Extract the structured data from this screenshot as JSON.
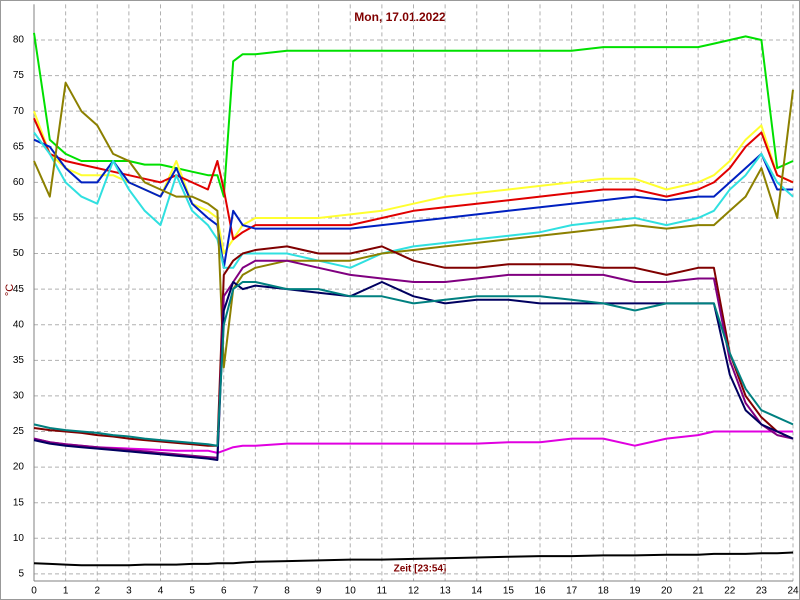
{
  "chart_data": {
    "type": "line",
    "title": "Mon, 17.01.2022",
    "y_label": "°C",
    "annotation": "Zeit [23:54]",
    "x": [
      0,
      0.5,
      1,
      1.5,
      2,
      2.5,
      3,
      3.5,
      4,
      4.5,
      5,
      5.5,
      5.8,
      6,
      6.3,
      6.6,
      7,
      8,
      9,
      10,
      11,
      12,
      13,
      14,
      15,
      16,
      17,
      18,
      19,
      20,
      21,
      21.5,
      22,
      22.5,
      23,
      23.5,
      24
    ],
    "xlim": [
      0,
      24
    ],
    "xticks": [
      0,
      1,
      2,
      3,
      4,
      5,
      6,
      7,
      8,
      9,
      10,
      11,
      12,
      13,
      14,
      15,
      16,
      17,
      18,
      19,
      20,
      21,
      22,
      23,
      24
    ],
    "ylim": [
      4,
      85
    ],
    "yticks": [
      5,
      10,
      15,
      20,
      25,
      30,
      35,
      40,
      45,
      50,
      55,
      60,
      65,
      70,
      75,
      80
    ],
    "grid": true,
    "series": [
      {
        "color": "#00e000",
        "values": [
          81,
          66,
          64,
          63,
          63,
          63,
          63,
          62.5,
          62.5,
          62,
          61.5,
          61,
          61,
          58,
          77,
          78,
          78,
          78.5,
          78.5,
          78.5,
          78.5,
          78.5,
          78.5,
          78.5,
          78.5,
          78.5,
          78.5,
          79,
          79,
          79,
          79,
          79.5,
          80,
          80.5,
          80,
          62,
          63
        ]
      },
      {
        "color": "#ffff30",
        "values": [
          70,
          64,
          62,
          61,
          61,
          61,
          60,
          59,
          58,
          63,
          57,
          56,
          55,
          50,
          52,
          54,
          55,
          55,
          55,
          55.5,
          56,
          57,
          58,
          58.5,
          59,
          59.5,
          60,
          60.5,
          60.5,
          59,
          60,
          61,
          63,
          66,
          68,
          61,
          60
        ]
      },
      {
        "color": "#e00000",
        "values": [
          69,
          64,
          63,
          62.5,
          62,
          61.5,
          61,
          60.5,
          60,
          61,
          60,
          59,
          63,
          59,
          52,
          53,
          54,
          54,
          54,
          54,
          55,
          56,
          56.5,
          57,
          57.5,
          58,
          58.5,
          59,
          59,
          58,
          59,
          60,
          62,
          65,
          67,
          61,
          60
        ]
      },
      {
        "color": "#0020c0",
        "values": [
          66,
          65,
          62,
          60,
          60,
          63,
          60,
          59,
          58,
          62,
          57,
          55,
          54,
          48,
          56,
          54,
          53.5,
          53.5,
          53.5,
          53.5,
          54,
          54.5,
          55,
          55.5,
          56,
          56.5,
          57,
          57.5,
          58,
          57.5,
          58,
          58,
          60,
          62,
          64,
          59,
          59
        ]
      },
      {
        "color": "#30e0e0",
        "values": [
          67,
          64,
          60,
          58,
          57,
          63,
          59,
          56,
          54,
          61,
          56,
          54,
          52,
          48,
          48,
          50,
          50,
          50,
          49,
          48,
          50,
          51,
          51.5,
          52,
          52.5,
          53,
          54,
          54.5,
          55,
          54,
          55,
          56,
          59,
          61,
          64,
          60,
          58
        ]
      },
      {
        "color": "#8c8000",
        "values": [
          63,
          58,
          74,
          70,
          68,
          64,
          63,
          60,
          59,
          58,
          58,
          57,
          56,
          34,
          45,
          47,
          48,
          49,
          49,
          49,
          50,
          50.5,
          51,
          51.5,
          52,
          52.5,
          53,
          53.5,
          54,
          53.5,
          54,
          54,
          56,
          58,
          62,
          55,
          73
        ]
      },
      {
        "color": "#e000e0",
        "values": [
          24,
          23.5,
          23.2,
          23,
          22.8,
          22.7,
          22.6,
          22.5,
          22.4,
          22.3,
          22.3,
          22.3,
          22,
          22.3,
          22.8,
          23,
          23,
          23.3,
          23.3,
          23.3,
          23.3,
          23.3,
          23.3,
          23.3,
          23.5,
          23.5,
          24,
          24,
          23,
          24,
          24.5,
          25,
          25,
          25,
          25,
          25,
          25
        ]
      },
      {
        "color": "#800000",
        "values": [
          25.5,
          25.2,
          25,
          24.8,
          24.5,
          24.3,
          24,
          23.8,
          23.6,
          23.4,
          23.2,
          23,
          23,
          47,
          49,
          50,
          50.5,
          51,
          50,
          50,
          51,
          49,
          48,
          48,
          48.5,
          48.5,
          48.5,
          48,
          48,
          47,
          48,
          48,
          36,
          30,
          27,
          25,
          24
        ]
      },
      {
        "color": "#800080",
        "values": [
          24,
          23.5,
          23.2,
          23,
          22.8,
          22.6,
          22.4,
          22.2,
          22,
          21.8,
          21.6,
          21.4,
          21.3,
          44,
          46,
          48,
          49,
          49,
          48,
          47,
          46.5,
          46,
          46,
          46.5,
          47,
          47,
          47,
          47,
          46,
          46,
          46.5,
          46.5,
          35,
          29,
          26,
          24.5,
          24
        ]
      },
      {
        "color": "#000060",
        "values": [
          23.8,
          23.3,
          23,
          22.8,
          22.6,
          22.4,
          22.2,
          22,
          21.8,
          21.6,
          21.4,
          21.2,
          21,
          42,
          46,
          45,
          45.5,
          45,
          44.5,
          44,
          46,
          44,
          43,
          43.5,
          43.5,
          43,
          43,
          43,
          43,
          43,
          43,
          43,
          33,
          28,
          26,
          25,
          24
        ]
      },
      {
        "color": "#008080",
        "values": [
          26,
          25.5,
          25.2,
          25,
          24.8,
          24.5,
          24.3,
          24,
          23.8,
          23.6,
          23.4,
          23.2,
          23,
          40,
          45,
          46,
          46,
          45,
          45,
          44,
          44,
          43,
          43.5,
          44,
          44,
          44,
          43.5,
          43,
          42,
          43,
          43,
          43,
          36,
          31,
          28,
          27,
          26
        ]
      },
      {
        "color": "#000000",
        "values": [
          6.5,
          6.4,
          6.3,
          6.2,
          6.2,
          6.2,
          6.2,
          6.3,
          6.3,
          6.3,
          6.4,
          6.4,
          6.5,
          6.5,
          6.5,
          6.6,
          6.7,
          6.8,
          6.9,
          7,
          7,
          7.1,
          7.2,
          7.3,
          7.4,
          7.5,
          7.5,
          7.6,
          7.6,
          7.7,
          7.7,
          7.8,
          7.8,
          7.8,
          7.9,
          7.9,
          8
        ]
      }
    ]
  }
}
